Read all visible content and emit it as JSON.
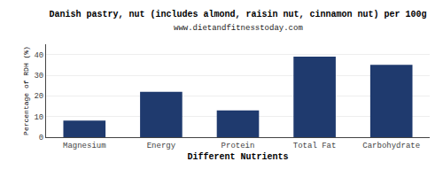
{
  "chart_data": {
    "type": "bar",
    "title": "Danish pastry, nut (includes almond, raisin nut, cinnamon nut) per 100g",
    "subtitle": "www.dietandfitnesstoday.com",
    "xlabel": "Different Nutrients",
    "ylabel": "Percentage of RDH (%)",
    "categories": [
      "Magnesium",
      "Energy",
      "Protein",
      "Total Fat",
      "Carbohydrate"
    ],
    "values": [
      8,
      22,
      13,
      39,
      35
    ],
    "color": "#1f3a6e",
    "ylim": [
      0,
      45
    ],
    "yticks": [
      0,
      10,
      20,
      30,
      40
    ],
    "grid": true
  }
}
